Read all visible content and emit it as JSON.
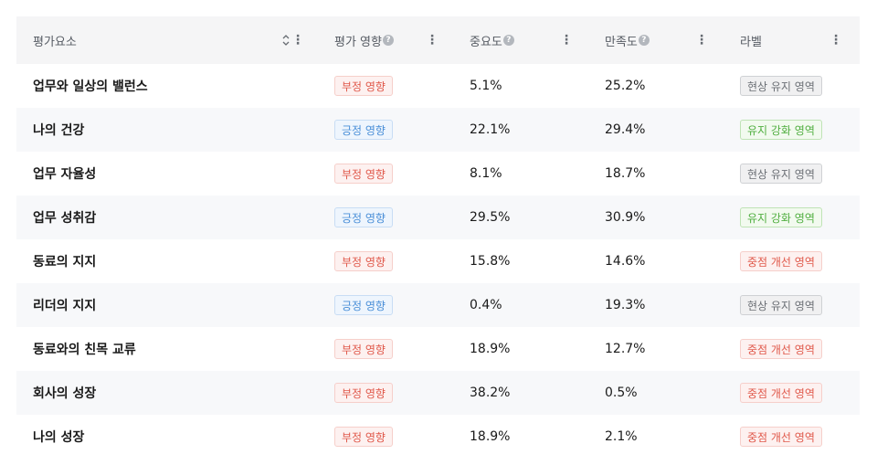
{
  "table": {
    "columns": [
      {
        "label": "평가요소",
        "help": false
      },
      {
        "label": "평가 영향",
        "help": true
      },
      {
        "label": "중요도",
        "help": true
      },
      {
        "label": "만족도",
        "help": true
      },
      {
        "label": "라벨",
        "help": false
      }
    ],
    "help_glyph": "?",
    "menu_glyph": "⋮",
    "rows": [
      {
        "name": "업무와 일상의 밸런스",
        "impact": "부정 영향",
        "impact_type": "neg",
        "importance": "5.1%",
        "satisfaction": "25.2%",
        "label": "현상 유지 영역",
        "label_type": "maintain"
      },
      {
        "name": "나의 건강",
        "impact": "긍정 영향",
        "impact_type": "pos",
        "importance": "22.1%",
        "satisfaction": "29.4%",
        "label": "유지 강화 영역",
        "label_type": "strength"
      },
      {
        "name": "업무 자율성",
        "impact": "부정 영향",
        "impact_type": "neg",
        "importance": "8.1%",
        "satisfaction": "18.7%",
        "label": "현상 유지 영역",
        "label_type": "maintain"
      },
      {
        "name": "업무 성취감",
        "impact": "긍정 영향",
        "impact_type": "pos",
        "importance": "29.5%",
        "satisfaction": "30.9%",
        "label": "유지 강화 영역",
        "label_type": "strength"
      },
      {
        "name": "동료의 지지",
        "impact": "부정 영향",
        "impact_type": "neg",
        "importance": "15.8%",
        "satisfaction": "14.6%",
        "label": "중점 개선 영역",
        "label_type": "improve"
      },
      {
        "name": "리더의 지지",
        "impact": "긍정 영향",
        "impact_type": "pos",
        "importance": "0.4%",
        "satisfaction": "19.3%",
        "label": "현상 유지 영역",
        "label_type": "maintain"
      },
      {
        "name": "동료와의 친목 교류",
        "impact": "부정 영향",
        "impact_type": "neg",
        "importance": "18.9%",
        "satisfaction": "12.7%",
        "label": "중점 개선 영역",
        "label_type": "improve"
      },
      {
        "name": "회사의 성장",
        "impact": "부정 영향",
        "impact_type": "neg",
        "importance": "38.2%",
        "satisfaction": "0.5%",
        "label": "중점 개선 영역",
        "label_type": "improve"
      },
      {
        "name": "나의 성장",
        "impact": "부정 영향",
        "impact_type": "neg",
        "importance": "18.9%",
        "satisfaction": "2.1%",
        "label": "중점 개선 영역",
        "label_type": "improve"
      }
    ]
  },
  "icons": {
    "sort": "sort-icon",
    "menu": "more-vertical-icon",
    "help": "help-circle-icon"
  },
  "colors": {
    "negative": "#e0584a",
    "positive": "#4a8fd8",
    "maintain": "#6b6f75",
    "strength": "#4fae3f",
    "header_bg": "#f5f5f6",
    "stripe_bg": "#f7f8fa"
  }
}
